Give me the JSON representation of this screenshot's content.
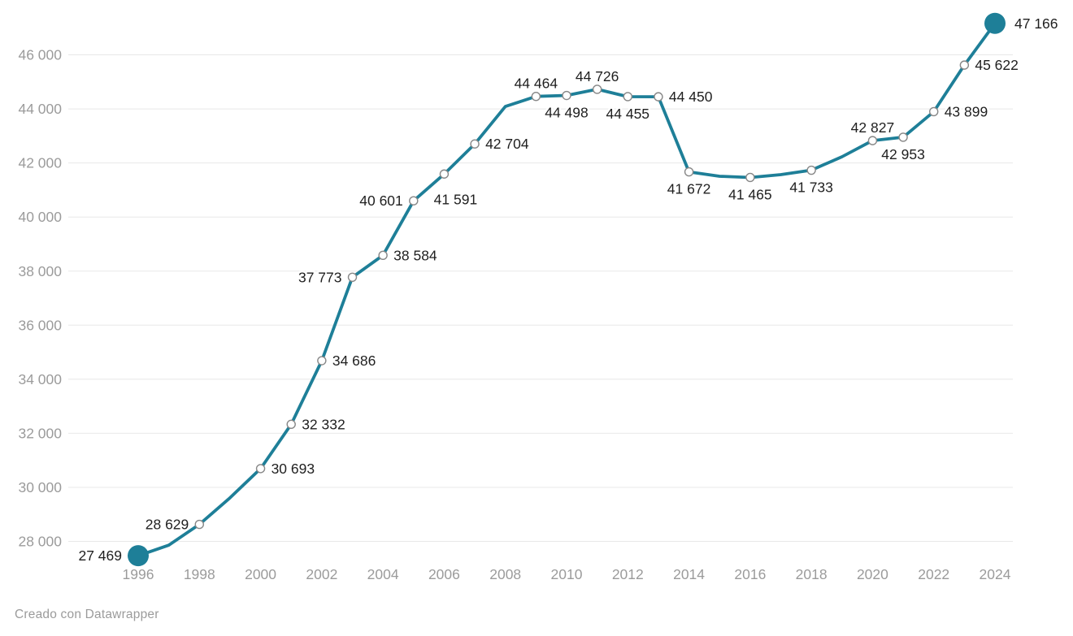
{
  "chart_data": {
    "type": "line",
    "title": "",
    "xlabel": "",
    "ylabel": "",
    "legend": "none",
    "grid": "horizontal",
    "xlim": [
      1996,
      2024
    ],
    "ylim": [
      27300,
      47400
    ],
    "x_tick_labels": [
      "1996",
      "1998",
      "2000",
      "2002",
      "2004",
      "2006",
      "2008",
      "2010",
      "2012",
      "2014",
      "2016",
      "2018",
      "2020",
      "2022",
      "2024"
    ],
    "y_ticks": [
      28000,
      30000,
      32000,
      34000,
      36000,
      38000,
      40000,
      42000,
      44000,
      46000
    ],
    "y_tick_labels": [
      "28 000",
      "30 000",
      "32 000",
      "34 000",
      "36 000",
      "38 000",
      "40 000",
      "42 000",
      "44 000",
      "46 000"
    ],
    "points": [
      {
        "year": 1996,
        "value": 27469,
        "label": "27 469",
        "marker": "big",
        "label_position": "left"
      },
      {
        "year": 1997,
        "value": 27860,
        "label": null,
        "marker": "none",
        "estimated": true
      },
      {
        "year": 1998,
        "value": 28629,
        "label": "28 629",
        "marker": "small",
        "label_position": "left"
      },
      {
        "year": 1999,
        "value": 29610,
        "label": null,
        "marker": "none",
        "estimated": true
      },
      {
        "year": 2000,
        "value": 30693,
        "label": "30 693",
        "marker": "small",
        "label_position": "right"
      },
      {
        "year": 2001,
        "value": 32332,
        "label": "32 332",
        "marker": "small",
        "label_position": "right"
      },
      {
        "year": 2002,
        "value": 34686,
        "label": "34 686",
        "marker": "small",
        "label_position": "right"
      },
      {
        "year": 2003,
        "value": 37773,
        "label": "37 773",
        "marker": "small",
        "label_position": "left"
      },
      {
        "year": 2004,
        "value": 38584,
        "label": "38 584",
        "marker": "small",
        "label_position": "right"
      },
      {
        "year": 2005,
        "value": 40601,
        "label": "40 601",
        "marker": "small",
        "label_position": "left"
      },
      {
        "year": 2006,
        "value": 41591,
        "label": "41 591",
        "marker": "small",
        "label_position": "below-right"
      },
      {
        "year": 2007,
        "value": 42704,
        "label": "42 704",
        "marker": "small",
        "label_position": "right"
      },
      {
        "year": 2008,
        "value": 44090,
        "label": null,
        "marker": "none",
        "estimated": true
      },
      {
        "year": 2009,
        "value": 44464,
        "label": "44 464",
        "marker": "small",
        "label_position": "above"
      },
      {
        "year": 2010,
        "value": 44498,
        "label": "44 498",
        "marker": "small",
        "label_position": "below"
      },
      {
        "year": 2011,
        "value": 44726,
        "label": "44 726",
        "marker": "small",
        "label_position": "above"
      },
      {
        "year": 2012,
        "value": 44455,
        "label": "44 455",
        "marker": "small",
        "label_position": "below"
      },
      {
        "year": 2013,
        "value": 44450,
        "label": "44 450",
        "marker": "small",
        "label_position": "right"
      },
      {
        "year": 2014,
        "value": 41672,
        "label": "41 672",
        "marker": "small",
        "label_position": "below"
      },
      {
        "year": 2015,
        "value": 41510,
        "label": null,
        "marker": "none",
        "estimated": true
      },
      {
        "year": 2016,
        "value": 41465,
        "label": "41 465",
        "marker": "small",
        "label_position": "below"
      },
      {
        "year": 2017,
        "value": 41570,
        "label": null,
        "marker": "none",
        "estimated": true
      },
      {
        "year": 2018,
        "value": 41733,
        "label": "41 733",
        "marker": "small",
        "label_position": "below"
      },
      {
        "year": 2019,
        "value": 42230,
        "label": null,
        "marker": "none",
        "estimated": true
      },
      {
        "year": 2020,
        "value": 42827,
        "label": "42 827",
        "marker": "small",
        "label_position": "above"
      },
      {
        "year": 2021,
        "value": 42953,
        "label": "42 953",
        "marker": "small",
        "label_position": "below"
      },
      {
        "year": 2022,
        "value": 43899,
        "label": "43 899",
        "marker": "small",
        "label_position": "right"
      },
      {
        "year": 2023,
        "value": 45622,
        "label": "45 622",
        "marker": "small",
        "label_position": "right"
      },
      {
        "year": 2024,
        "value": 47166,
        "label": "47 166",
        "marker": "big",
        "label_position": "right"
      }
    ]
  },
  "colors": {
    "line": "#1e7f98",
    "big_dot": "#1e7f98",
    "marker_stroke": "#878787",
    "marker_fill": "#ffffff",
    "gridline": "#e8e8e8",
    "axis_text": "#9b9b9b",
    "label_text": "#1f1f1f",
    "background": "#ffffff"
  },
  "footer": {
    "credit": "Creado con Datawrapper"
  }
}
